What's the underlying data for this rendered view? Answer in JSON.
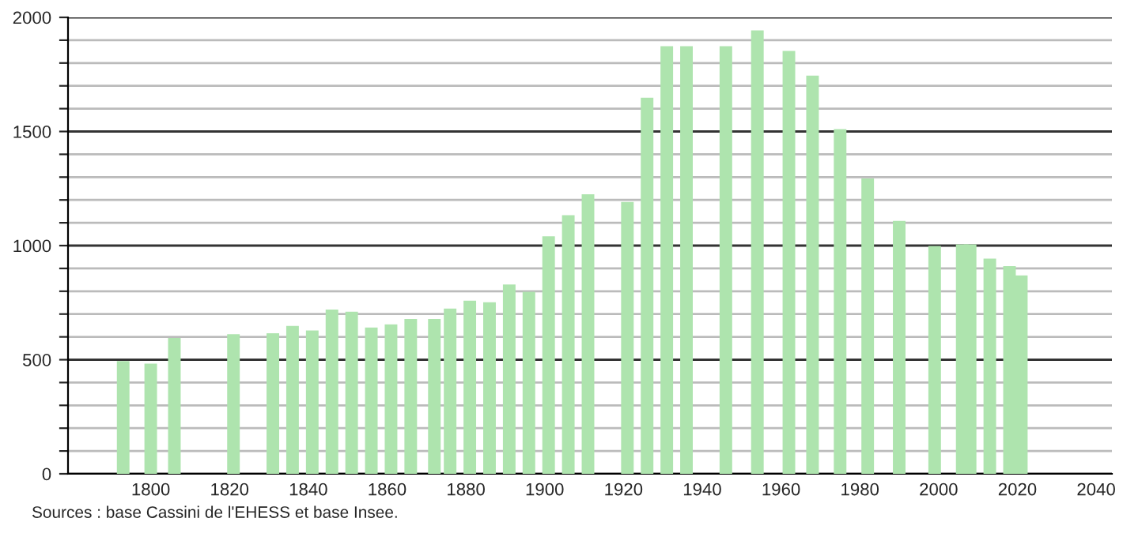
{
  "chart_data": {
    "type": "bar",
    "x": [
      1793,
      1800,
      1806,
      1821,
      1831,
      1836,
      1841,
      1846,
      1851,
      1856,
      1861,
      1866,
      1872,
      1876,
      1881,
      1886,
      1891,
      1896,
      1901,
      1906,
      1911,
      1921,
      1926,
      1931,
      1936,
      1946,
      1954,
      1962,
      1968,
      1975,
      1982,
      1990,
      1999,
      2006,
      2008,
      2013,
      2018,
      2021
    ],
    "values": [
      494,
      483,
      595,
      612,
      616,
      648,
      628,
      720,
      710,
      641,
      655,
      678,
      678,
      724,
      759,
      752,
      830,
      798,
      1041,
      1133,
      1225,
      1191,
      1648,
      1874,
      1874,
      1874,
      1943,
      1853,
      1745,
      1510,
      1294,
      1108,
      998,
      1005,
      1005,
      943,
      910,
      869
    ],
    "color": "#aee4ae",
    "xlim": [
      1779,
      2044
    ],
    "xticks": [
      1800,
      1820,
      1840,
      1860,
      1880,
      1900,
      1920,
      1940,
      1960,
      1980,
      2000,
      2020,
      2040
    ],
    "ylim": [
      0,
      2000
    ],
    "yticks": [
      0,
      {
        "value": 100,
        "label": null
      },
      {
        "value": 200,
        "label": null
      },
      {
        "value": 300,
        "label": null
      },
      {
        "value": 400,
        "label": null
      },
      500,
      {
        "value": 600,
        "label": null
      },
      {
        "value": 700,
        "label": null
      },
      {
        "value": 800,
        "label": null
      },
      {
        "value": 900,
        "label": null
      },
      1000,
      {
        "value": 1100,
        "label": null
      },
      {
        "value": 1200,
        "label": null
      },
      {
        "value": 1300,
        "label": null
      },
      {
        "value": 1400,
        "label": null
      },
      1500,
      {
        "value": 1600,
        "label": null
      },
      {
        "value": 1700,
        "label": null
      },
      {
        "value": 1800,
        "label": null
      },
      {
        "value": 1900,
        "label": null
      },
      2000
    ],
    "grid": "y",
    "annotations": [
      "Sources : base Cassini de l'EHESS et base Insee."
    ]
  }
}
